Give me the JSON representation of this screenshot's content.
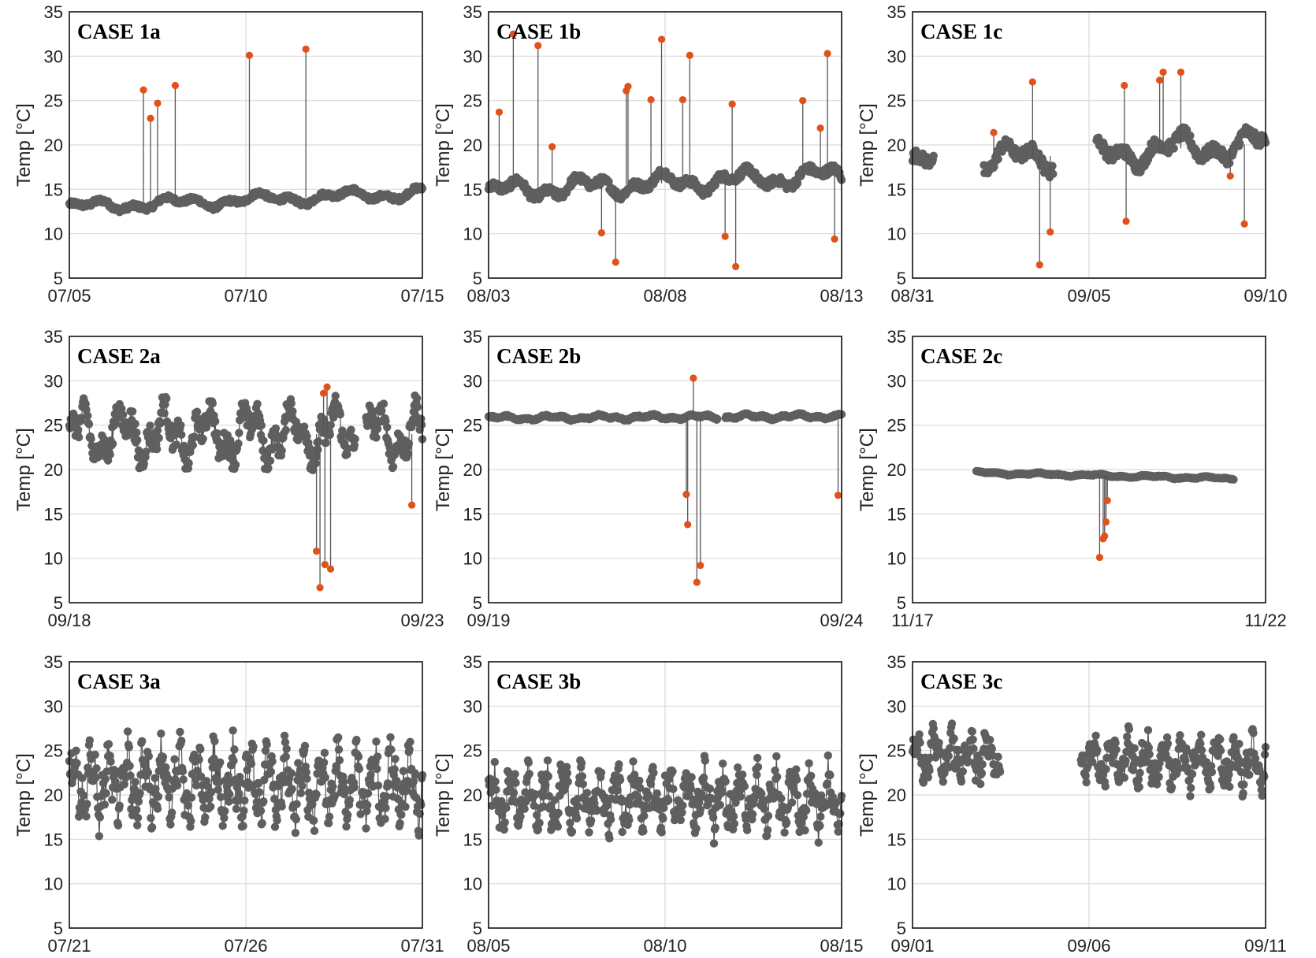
{
  "figure": {
    "colors": {
      "normal": "#5f5f5f",
      "anomaly": "#e0521c",
      "spike_line": "#555555"
    },
    "ylabel": "Temp [°C]"
  },
  "chart_data": [
    {
      "type": "scatter",
      "title": "CASE 1a",
      "ylabel": "Temp [°C]",
      "ylim": [
        5,
        35
      ],
      "yticks": [
        5,
        10,
        15,
        20,
        25,
        30,
        35
      ],
      "xtick_labels": [
        "07/05",
        "07/10",
        "07/15"
      ],
      "xrange_days": 10,
      "grid": true,
      "baseline": {
        "start": 13.0,
        "end": 14.6,
        "amp": 0.9,
        "per": 2.4,
        "width": 24
      },
      "gaps": [],
      "anomalies": [
        [
          2.1,
          26.2
        ],
        [
          2.3,
          23.0
        ],
        [
          2.5,
          24.7
        ],
        [
          3.0,
          26.7
        ],
        [
          5.1,
          30.1
        ],
        [
          6.7,
          30.8
        ]
      ]
    },
    {
      "type": "scatter",
      "title": "CASE 1b",
      "ylabel": "Temp [°C]",
      "ylim": [
        5,
        35
      ],
      "yticks": [
        5,
        10,
        15,
        20,
        25,
        30,
        35
      ],
      "xtick_labels": [
        "08/03",
        "08/08",
        "08/13"
      ],
      "xrange_days": 10,
      "grid": true,
      "baseline": {
        "start": 14.8,
        "end": 16.6,
        "amp": 1.5,
        "per": 2.2,
        "width": 30
      },
      "gaps": [],
      "anomalies": [
        [
          0.3,
          23.7
        ],
        [
          0.7,
          32.5
        ],
        [
          1.4,
          31.2
        ],
        [
          1.8,
          19.8
        ],
        [
          3.2,
          10.1
        ],
        [
          3.6,
          6.8
        ],
        [
          3.9,
          26.1
        ],
        [
          3.95,
          26.6
        ],
        [
          4.6,
          25.1
        ],
        [
          4.9,
          31.9
        ],
        [
          5.5,
          25.1
        ],
        [
          5.7,
          30.1
        ],
        [
          6.7,
          9.7
        ],
        [
          6.9,
          24.6
        ],
        [
          7.0,
          6.3
        ],
        [
          8.9,
          25.0
        ],
        [
          9.4,
          21.9
        ],
        [
          9.6,
          30.3
        ],
        [
          9.8,
          9.4
        ]
      ]
    },
    {
      "type": "scatter",
      "title": "CASE 1c",
      "ylabel": "Temp [°C]",
      "ylim": [
        5,
        35
      ],
      "yticks": [
        5,
        10,
        15,
        20,
        25,
        30,
        35
      ],
      "xtick_labels": [
        "08/31",
        "09/05",
        "09/10"
      ],
      "xrange_days": 10,
      "grid": true,
      "baseline": {
        "start": 17.8,
        "end": 20.2,
        "amp": 2.2,
        "per": 2.3,
        "width": 30
      },
      "gaps": [
        [
          0.6,
          2.0
        ],
        [
          4.0,
          5.2
        ]
      ],
      "anomalies": [
        [
          2.3,
          21.4
        ],
        [
          3.4,
          27.1
        ],
        [
          3.6,
          6.5
        ],
        [
          3.9,
          10.2
        ],
        [
          6.0,
          26.7
        ],
        [
          6.05,
          11.4
        ],
        [
          7.0,
          27.3
        ],
        [
          7.1,
          28.2
        ],
        [
          7.6,
          28.2
        ],
        [
          9.0,
          16.5
        ],
        [
          9.4,
          11.1
        ]
      ]
    },
    {
      "type": "scatter",
      "title": "CASE 2a",
      "ylabel": "Temp [°C]",
      "ylim": [
        5,
        35
      ],
      "yticks": [
        5,
        10,
        15,
        20,
        25,
        30,
        35
      ],
      "xtick_labels": [
        "09/18",
        "09/23"
      ],
      "xrange_days": 5,
      "grid": true,
      "baseline": {
        "start": 24.0,
        "end": 24.0,
        "amp": 4.2,
        "per": 0.6,
        "width": 30
      },
      "gaps": [
        [
          4.05,
          4.2
        ]
      ],
      "anomalies": [
        [
          3.5,
          10.8
        ],
        [
          3.55,
          6.7
        ],
        [
          3.6,
          28.6
        ],
        [
          3.62,
          9.3
        ],
        [
          3.65,
          29.3
        ],
        [
          3.7,
          8.8
        ],
        [
          4.85,
          16.0
        ]
      ]
    },
    {
      "type": "scatter",
      "title": "CASE 2b",
      "ylabel": "Temp [°C]",
      "ylim": [
        5,
        35
      ],
      "yticks": [
        5,
        10,
        15,
        20,
        25,
        30,
        35
      ],
      "xtick_labels": [
        "09/19",
        "09/24"
      ],
      "xrange_days": 5,
      "grid": true,
      "baseline": {
        "start": 25.8,
        "end": 26.0,
        "amp": 0.35,
        "per": 0.7,
        "width": 24
      },
      "gaps": [
        [
          3.25,
          3.35
        ]
      ],
      "anomalies": [
        [
          2.8,
          17.2
        ],
        [
          2.82,
          13.8
        ],
        [
          2.9,
          30.3
        ],
        [
          2.95,
          7.3
        ],
        [
          3.0,
          9.2
        ],
        [
          4.95,
          17.1
        ]
      ]
    },
    {
      "type": "scatter",
      "title": "CASE 2c",
      "ylabel": "Temp [°C]",
      "ylim": [
        5,
        35
      ],
      "yticks": [
        5,
        10,
        15,
        20,
        25,
        30,
        35
      ],
      "xtick_labels": [
        "11/17",
        "11/22"
      ],
      "xrange_days": 5,
      "grid": true,
      "baseline": {
        "start": 19.8,
        "end": 18.9,
        "amp": 0.2,
        "per": 0.8,
        "width": 20
      },
      "gaps": [
        [
          0,
          0.9
        ],
        [
          4.55,
          5.0
        ]
      ],
      "anomalies": [
        [
          2.65,
          10.1
        ],
        [
          2.7,
          12.2
        ],
        [
          2.72,
          12.5
        ],
        [
          2.74,
          14.1
        ],
        [
          2.76,
          16.5
        ]
      ]
    },
    {
      "type": "scatter",
      "title": "CASE 3a",
      "ylabel": "Temp [°C]",
      "ylim": [
        5,
        35
      ],
      "yticks": [
        5,
        10,
        15,
        20,
        25,
        30,
        35
      ],
      "xtick_labels": [
        "07/21",
        "07/26",
        "07/31"
      ],
      "xrange_days": 10,
      "grid": true,
      "baseline": {
        "start": 21.5,
        "end": 21.0,
        "amp": 5.5,
        "per": 0.5,
        "width": 30
      },
      "gaps": [],
      "anomalies": []
    },
    {
      "type": "scatter",
      "title": "CASE 3b",
      "ylabel": "Temp [°C]",
      "ylim": [
        5,
        35
      ],
      "yticks": [
        5,
        10,
        15,
        20,
        25,
        30,
        35
      ],
      "xtick_labels": [
        "08/05",
        "08/10",
        "08/15"
      ],
      "xrange_days": 10,
      "grid": true,
      "baseline": {
        "start": 19.5,
        "end": 19.5,
        "amp": 4.5,
        "per": 0.5,
        "width": 30
      },
      "gaps": [],
      "anomalies": []
    },
    {
      "type": "scatter",
      "title": "CASE 3c",
      "ylabel": "Temp [°C]",
      "ylim": [
        5,
        35
      ],
      "yticks": [
        5,
        10,
        15,
        20,
        25,
        30,
        35
      ],
      "xtick_labels": [
        "09/01",
        "09/06",
        "09/11"
      ],
      "xrange_days": 10,
      "grid": true,
      "baseline": {
        "start": 24.5,
        "end": 23.5,
        "amp": 3.5,
        "per": 0.5,
        "width": 30
      },
      "gaps": [
        [
          2.5,
          4.75
        ]
      ],
      "anomalies": []
    }
  ]
}
